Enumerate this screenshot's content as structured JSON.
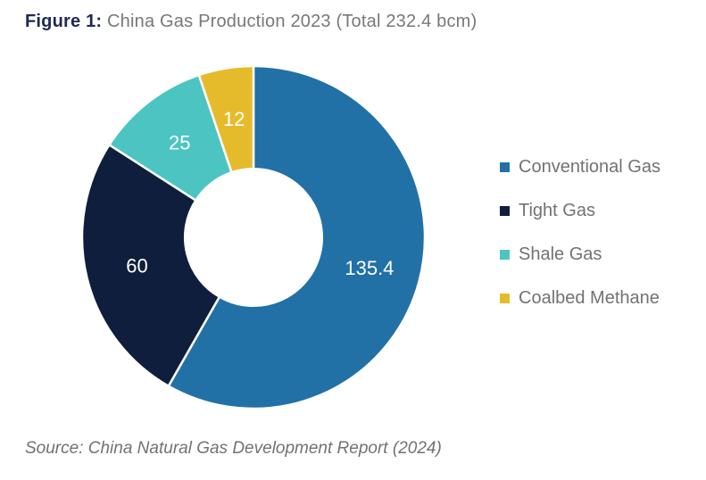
{
  "title": {
    "prefix": "Figure 1:",
    "text": " China Gas Production 2023 (Total 232.4 bcm)"
  },
  "source": "Source: China Natural Gas Development Report (2024)",
  "chart_data": {
    "type": "pie",
    "subtype": "donut",
    "title": "China Gas Production 2023",
    "total": 232.4,
    "unit": "bcm",
    "segments": [
      {
        "label": "Conventional Gas",
        "value": 135.4,
        "color": "#2171A7"
      },
      {
        "label": "Tight Gas",
        "value": 60,
        "color": "#0F1E3C"
      },
      {
        "label": "Shale Gas",
        "value": 25,
        "color": "#4CC5C2"
      },
      {
        "label": "Coalbed Methane",
        "value": 12,
        "color": "#E6BB2B"
      }
    ],
    "start_angle_deg": 0,
    "direction": "clockwise",
    "inner_radius_ratio": 0.4,
    "segment_gap_color": "#FFFFFF",
    "data_label_color": "#FFFFFF",
    "legend_position": "right"
  },
  "colors": {
    "title_accent": "#1E2A52",
    "text_gray": "#717275",
    "background": "#FFFFFF"
  }
}
